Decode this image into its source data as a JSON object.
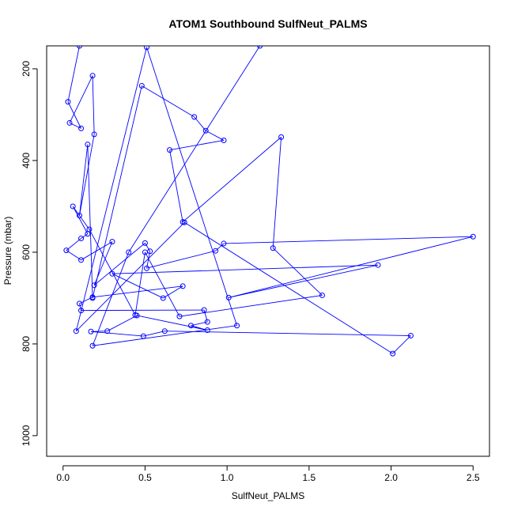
{
  "chart_data": {
    "type": "line",
    "title": "ATOM1 Southbound SulfNeut_PALMS",
    "xlabel": "SulfNeut_PALMS",
    "ylabel": "Pressure (mbar)",
    "xlim": [
      -0.1,
      2.6
    ],
    "ylim": [
      1045,
      150
    ],
    "y_reversed": true,
    "x_ticks": [
      0.0,
      0.5,
      1.0,
      1.5,
      2.0,
      2.5
    ],
    "x_tick_labels": [
      "0.0",
      "0.5",
      "1.0",
      "1.5",
      "2.0",
      "2.5"
    ],
    "y_ticks": [
      200,
      400,
      600,
      800,
      1000
    ],
    "y_tick_labels": [
      "200",
      "400",
      "600",
      "800",
      "1000"
    ],
    "grid": false,
    "legend": "none",
    "color": "#0000ff",
    "series": [
      {
        "x": [
          0.1,
          0.03,
          0.11,
          0.04,
          0.18,
          0.19,
          0.1,
          0.15,
          0.18,
          0.48,
          0.8,
          0.87,
          0.98,
          0.65,
          0.73,
          1.33,
          1.28,
          1.58,
          0.71,
          0.5,
          0.44,
          0.16,
          0.06,
          0.15,
          0.11,
          0.02,
          0.11,
          0.3,
          0.19,
          0.5,
          0.53,
          0.51,
          0.93,
          0.98,
          2.5,
          1.01,
          1.92,
          0.3,
          0.61,
          0.73,
          0.18,
          0.1,
          0.11,
          0.86,
          0.88,
          0.78,
          0.88,
          0.45,
          0.27,
          0.17,
          0.49,
          0.62,
          2.12,
          2.01,
          0.74,
          0.08,
          0.51,
          1.06,
          0.18,
          0.4,
          1.2
        ],
        "y": [
          150,
          272,
          330,
          318,
          215,
          343,
          520,
          365,
          700,
          237,
          305,
          335,
          356,
          377,
          534,
          349,
          591,
          694,
          740,
          600,
          737,
          550,
          500,
          560,
          570,
          596,
          617,
          577,
          672,
          580,
          598,
          635,
          597,
          581,
          566,
          699,
          628,
          647,
          700,
          674,
          698,
          712,
          727,
          726,
          752,
          760,
          770,
          738,
          772,
          773,
          783,
          772,
          782,
          821,
          535,
          772,
          153,
          760,
          804,
          600,
          150
        ]
      }
    ]
  }
}
